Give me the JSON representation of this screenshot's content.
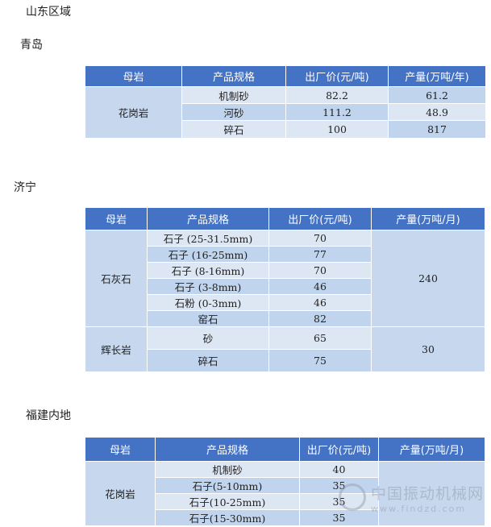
{
  "region_title": "山东区域",
  "sections": [
    {
      "title": "青岛",
      "headers": [
        "母岩",
        "产品规格",
        "出厂价(元/吨)",
        "产量(万吨/年)"
      ],
      "rock": "花岗岩",
      "rows": [
        [
          "机制砂",
          "82.2",
          "61.2"
        ],
        [
          "河砂",
          "111.2",
          "48.9"
        ],
        [
          "碎石",
          "100",
          "817"
        ]
      ]
    },
    {
      "title": "济宁",
      "headers": [
        "母岩",
        "产品规格",
        "出厂价(元/吨)",
        "产量(万吨/月)"
      ],
      "groups": [
        {
          "rock": "石灰石",
          "output": "240",
          "rows": [
            [
              "石子 (25-31.5mm)",
              "70"
            ],
            [
              "石子 (16-25mm)",
              "77"
            ],
            [
              "石子 (8-16mm)",
              "70"
            ],
            [
              "石子 (3-8mm)",
              "46"
            ],
            [
              "石粉 (0-3mm)",
              "46"
            ],
            [
              "窑石",
              "82"
            ]
          ]
        },
        {
          "rock": "辉长岩",
          "output": "30",
          "rows": [
            [
              "砂",
              "65"
            ],
            [
              "碎石",
              "75"
            ]
          ]
        }
      ]
    },
    {
      "title": "福建内地",
      "headers": [
        "母岩",
        "产品规格",
        "出厂价(元/吨)",
        "产量(万吨/月)"
      ],
      "rock": "花岗岩",
      "output": "",
      "rows": [
        [
          "机制砂",
          "40"
        ],
        [
          "石子(5-10mm)",
          "35"
        ],
        [
          "石子(10-25mm)",
          "35"
        ],
        [
          "石子(15-30mm)",
          "35"
        ]
      ]
    }
  ],
  "watermark": {
    "name": "中国振动机械网",
    "url": "www.findzd.com"
  }
}
